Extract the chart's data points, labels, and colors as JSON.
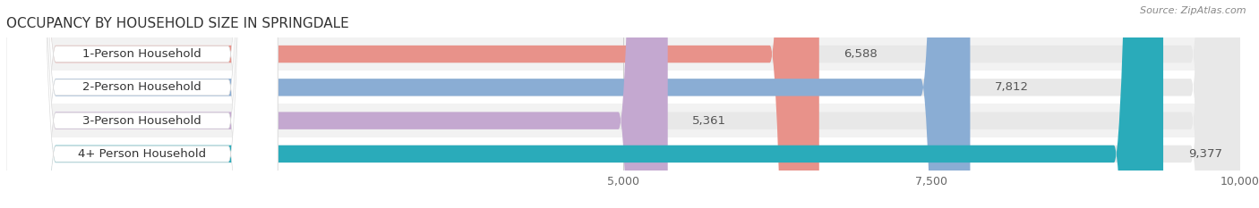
{
  "title": "OCCUPANCY BY HOUSEHOLD SIZE IN SPRINGDALE",
  "source": "Source: ZipAtlas.com",
  "categories": [
    "1-Person Household",
    "2-Person Household",
    "3-Person Household",
    "4+ Person Household"
  ],
  "values": [
    6588,
    7812,
    5361,
    9377
  ],
  "bar_colors": [
    "#e8928a",
    "#8aadd4",
    "#c4a8d0",
    "#2aabba"
  ],
  "bar_bg_color": "#e8e8e8",
  "label_bg_color": "#ffffff",
  "xlim": [
    0,
    10000
  ],
  "xmin": 0,
  "xticks": [
    5000,
    7500,
    10000
  ],
  "xtick_labels": [
    "5,000",
    "7,500",
    "10,000"
  ],
  "value_labels": [
    "6,588",
    "7,812",
    "5,361",
    "9,377"
  ],
  "bar_height": 0.52,
  "background_color": "#f7f7f7",
  "row_bg_colors": [
    "#f0f0f0",
    "#f0f0f0",
    "#f0f0f0",
    "#f0f0f0"
  ],
  "title_fontsize": 11,
  "label_fontsize": 9.5,
  "tick_fontsize": 9,
  "source_fontsize": 8
}
